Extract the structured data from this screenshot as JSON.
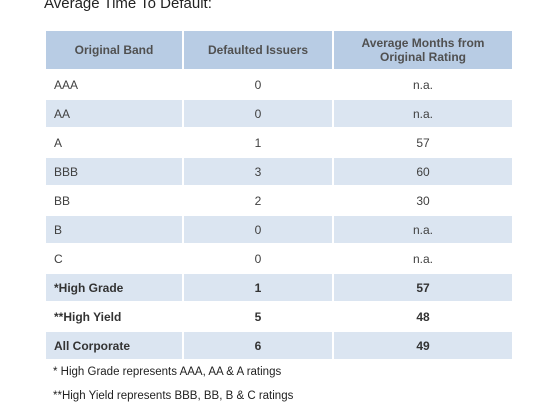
{
  "title": "Average Time To Default:",
  "table": {
    "header": [
      "Original Band",
      "Defaulted Issuers",
      "Average Months from Original Rating"
    ],
    "rows": [
      [
        "AAA",
        0,
        "n.a."
      ],
      [
        "AA",
        0,
        "n.a."
      ],
      [
        "A",
        1,
        57
      ],
      [
        "BBB",
        3,
        60
      ],
      [
        "BB",
        2,
        30
      ],
      [
        "B",
        0,
        "n.a."
      ],
      [
        "C",
        0,
        "n.a."
      ],
      [
        "*High Grade",
        1,
        57
      ],
      [
        "**High Yield",
        5,
        48
      ],
      [
        "All Corporate",
        6,
        49
      ]
    ]
  },
  "footnotes": [
    "* High Grade represents AAA, AA & A ratings",
    "**High Yield represents BBB, BB, B & C ratings"
  ]
}
